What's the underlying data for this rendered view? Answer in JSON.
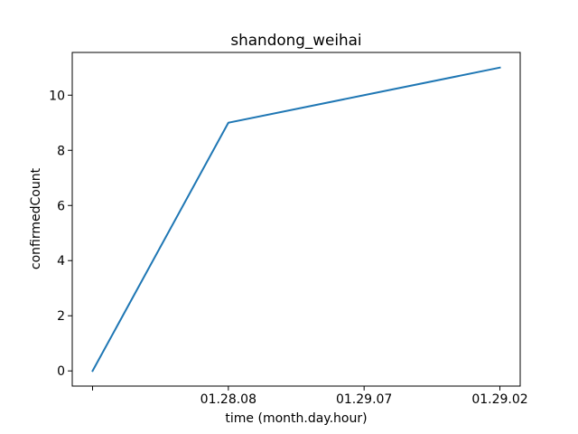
{
  "chart_data": {
    "type": "line",
    "title": "shandong_weihai",
    "xlabel": "time (month.day.hour)",
    "ylabel": "confirmedCount",
    "x": [
      "",
      "01.28.08",
      "01.29.07",
      "01.29.02"
    ],
    "series": [
      {
        "values": [
          0,
          9,
          10,
          11
        ],
        "color": "#1f77b4"
      }
    ],
    "yticks": [
      0,
      2,
      4,
      6,
      8,
      10
    ],
    "ylim": [
      -0.55,
      11.55
    ],
    "grid": false
  }
}
